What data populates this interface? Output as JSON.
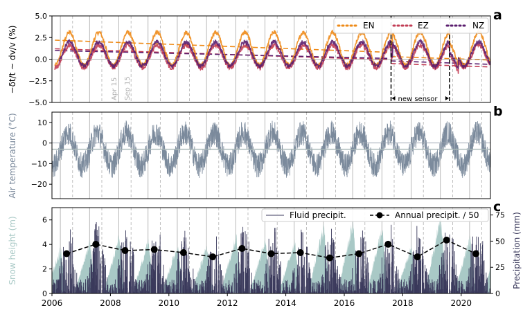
{
  "colors": {
    "EN": "#ee8a17",
    "EZ": "#c23d55",
    "NZ": "#5a1d6e",
    "temperature": "#7b8a9c",
    "snow": "#a9c9c6",
    "rain": "#3b3a5c",
    "annual": "#000000",
    "vline_apr": "#b0b0b0",
    "vline_sep": "#b0b0b0"
  },
  "xaxis": {
    "ticks": [
      2006,
      2008,
      2010,
      2012,
      2014,
      2016,
      2018,
      2020
    ],
    "range": [
      2006,
      2021
    ]
  },
  "chart_data": [
    {
      "type": "line",
      "panel_label": "a",
      "ylabel": "−δt/t  ~ dv/v (%)",
      "ylim": [
        -5.0,
        5.0
      ],
      "yticks": [
        "5.0",
        "2.5",
        "0.0",
        "−2.5",
        "−5.0"
      ],
      "annotations": {
        "apr": "Apr 15",
        "sep": "Sep 15",
        "new_sensor": "new sensor"
      },
      "new_sensor_period": [
        2017.6,
        2019.6
      ],
      "legend": "top-right",
      "series": [
        {
          "name": "EN",
          "amplitude": 1.9,
          "mean": 1.2,
          "trend_start": 2.2,
          "trend_end": 0.2
        },
        {
          "name": "EZ",
          "amplitude": 1.3,
          "mean": 0.3,
          "trend_start": 1.2,
          "trend_end": -0.6
        },
        {
          "name": "NZ",
          "amplitude": 1.4,
          "mean": 0.6,
          "trend_start": 1.0,
          "trend_end": -0.3
        }
      ]
    },
    {
      "type": "line",
      "panel_label": "b",
      "ylabel": "Air temperature (°C)",
      "ylim": [
        -27,
        15
      ],
      "yticks": [
        "10",
        "0",
        "−10",
        "−20"
      ],
      "mean_line": -3,
      "seasonal_mean": -3,
      "seasonal_amplitude": 8,
      "noise": 6
    },
    {
      "type": "area",
      "panel_label": "c",
      "ylabel": "Snow height (m)",
      "ylabel_right": "Precipitation (mm)",
      "ylim": [
        0,
        7
      ],
      "yticks": [
        "0",
        "2",
        "4",
        "6"
      ],
      "ylim_right": [
        0,
        82
      ],
      "yticks_right": [
        "0",
        "25",
        "50",
        "75"
      ],
      "legend": "top-right",
      "legend_labels": {
        "fluid": "Fluid precipit.",
        "annual": "Annual precipit. / 50"
      },
      "annual_x": [
        2006.5,
        2007.5,
        2008.5,
        2009.5,
        2010.5,
        2011.5,
        2012.5,
        2013.5,
        2014.5,
        2015.5,
        2016.5,
        2017.5,
        2018.5,
        2019.5,
        2020.5
      ],
      "annual_values": [
        38,
        47,
        41,
        42,
        39,
        35,
        43,
        38,
        39,
        34,
        38,
        47,
        35,
        51,
        38
      ],
      "snow_peaks": [
        3.8,
        4.4,
        4.8,
        4.6,
        4.2,
        4.0,
        5.0,
        4.7,
        4.5,
        5.8,
        6.2,
        5.6,
        4.0,
        6.5,
        4.8
      ]
    }
  ]
}
